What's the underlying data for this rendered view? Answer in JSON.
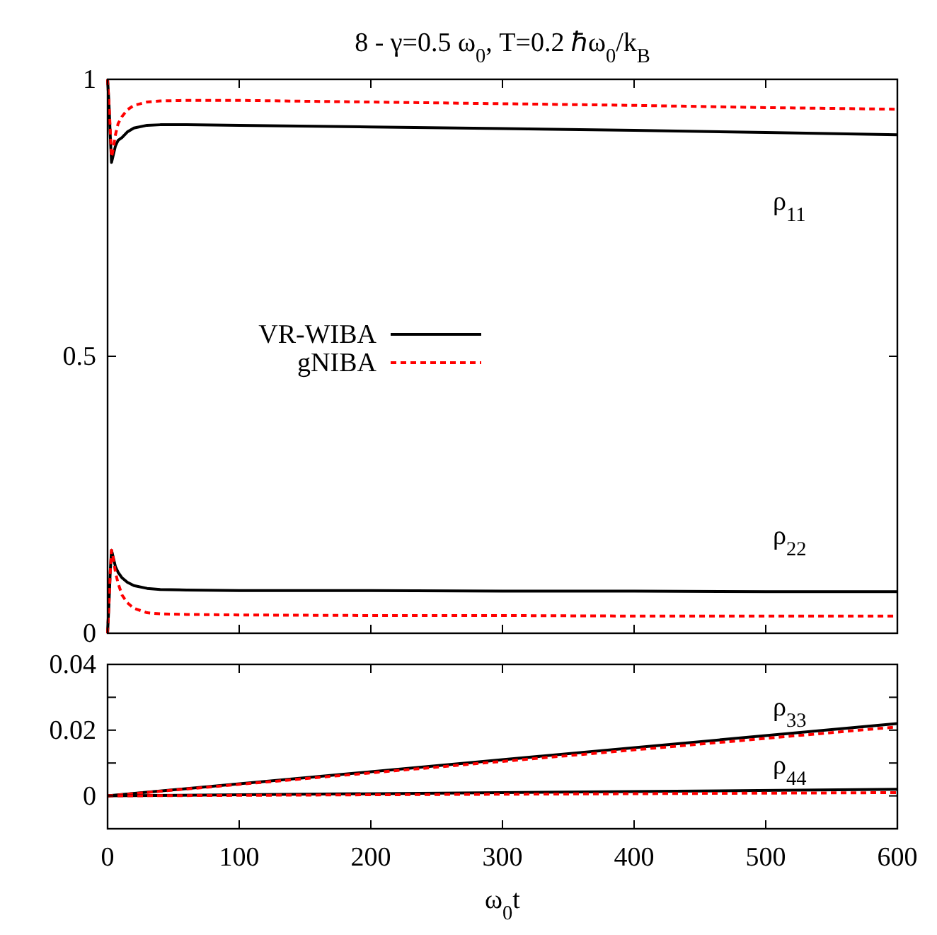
{
  "chart_data": [
    {
      "type": "line",
      "title": "8   -  γ=0.5 ω$_{0}$,  T=0.2 ℏω$_{0}$/k$_{B}$",
      "x": [
        0,
        1,
        2,
        3,
        4,
        6,
        8,
        11,
        15,
        20,
        30,
        40,
        60,
        100,
        200,
        300,
        400,
        500,
        600
      ],
      "xlim": [
        0,
        600
      ],
      "xticks": [
        {
          "value": 0,
          "label": null
        },
        {
          "value": 100,
          "label": null
        },
        {
          "value": 200,
          "label": null
        },
        {
          "value": 300,
          "label": null
        },
        {
          "value": 400,
          "label": null
        },
        {
          "value": 500,
          "label": null
        },
        {
          "value": 600,
          "label": null
        }
      ],
      "ylim": [
        0,
        1
      ],
      "yticks": [
        0,
        0.5,
        1
      ],
      "tick_labels": "y",
      "legend": "left",
      "grid": false,
      "series": [
        {
          "name": "VR-WIBA",
          "color": "#000000",
          "line_style": "solid",
          "values": [
            1,
            0.96,
            0.9,
            0.85,
            0.86,
            0.88,
            0.89,
            0.895,
            0.905,
            0.912,
            0.917,
            0.918,
            0.918,
            0.917,
            0.914,
            0.911,
            0.908,
            0.904,
            0.9
          ]
        },
        {
          "name": "gNIBA",
          "color": "#ff0000",
          "line_style": "dashed",
          "values": [
            1,
            0.96,
            0.91,
            0.86,
            0.87,
            0.9,
            0.92,
            0.933,
            0.945,
            0.953,
            0.959,
            0.961,
            0.962,
            0.962,
            0.959,
            0.956,
            0.953,
            0.949,
            0.946
          ]
        },
        {
          "color": "#000000",
          "line_style": "solid",
          "values": [
            0,
            0.05,
            0.11,
            0.15,
            0.14,
            0.12,
            0.11,
            0.1,
            0.092,
            0.086,
            0.081,
            0.079,
            0.078,
            0.077,
            0.077,
            0.076,
            0.076,
            0.075,
            0.075
          ]
        },
        {
          "color": "#ff0000",
          "line_style": "dashed",
          "values": [
            0,
            0.05,
            0.11,
            0.15,
            0.14,
            0.11,
            0.09,
            0.069,
            0.055,
            0.045,
            0.037,
            0.035,
            0.034,
            0.033,
            0.032,
            0.032,
            0.031,
            0.031,
            0.031
          ]
        }
      ],
      "annotations": [
        "ρ$_{11}$",
        "ρ$_{22}$"
      ]
    },
    {
      "type": "line",
      "xlabel": "ω$_{0}$t",
      "x": [
        0,
        600
      ],
      "xlim": [
        0,
        600
      ],
      "xticks": [
        0,
        100,
        200,
        300,
        400,
        500,
        600
      ],
      "ylim": [
        -0.01,
        0.04
      ],
      "yticks": [
        {
          "value": -0.01,
          "label": null
        },
        0,
        {
          "value": 0.01,
          "label": null
        },
        0.02,
        {
          "value": 0.03,
          "label": null
        },
        0.04
      ],
      "grid": false,
      "series": [
        {
          "color": "#000000",
          "line_style": "solid",
          "values": [
            0,
            0.022
          ]
        },
        {
          "color": "#ff0000",
          "line_style": "dashed",
          "values": [
            0,
            0.021
          ]
        },
        {
          "color": "#000000",
          "line_style": "solid",
          "values": [
            0,
            0.002
          ]
        },
        {
          "color": "#ff0000",
          "line_style": "dashed",
          "values": [
            0,
            0.001
          ]
        }
      ],
      "annotations": [
        "ρ$_{33}$",
        "ρ$_{44}$"
      ]
    }
  ]
}
